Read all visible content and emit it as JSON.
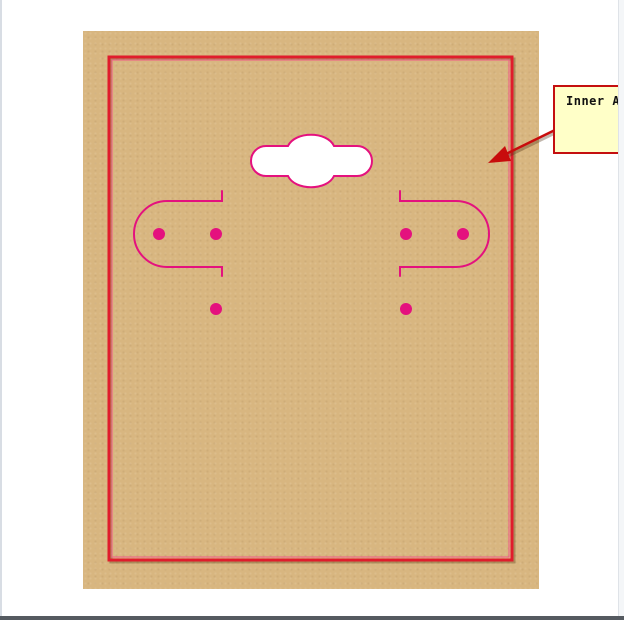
{
  "annotation": {
    "callout_text": "Inner Are",
    "callout_bg": "#ffffc8",
    "callout_border": "#c40f0f",
    "arrow_color": "#c80c0c"
  },
  "card": {
    "background": "#d8b680",
    "inner_area_border": "#e01c2c",
    "die_line_color": "#e4117e",
    "hang_hole_fill": "#ffffff"
  }
}
